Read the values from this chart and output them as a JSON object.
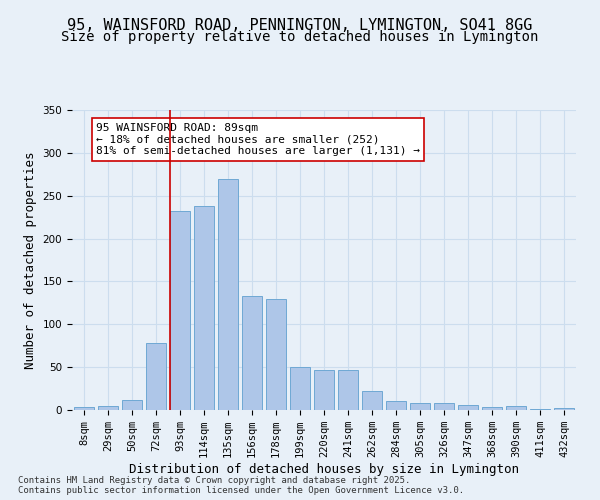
{
  "title_line1": "95, WAINSFORD ROAD, PENNINGTON, LYMINGTON, SO41 8GG",
  "title_line2": "Size of property relative to detached houses in Lymington",
  "xlabel": "Distribution of detached houses by size in Lymington",
  "ylabel": "Number of detached properties",
  "categories": [
    "8sqm",
    "29sqm",
    "50sqm",
    "72sqm",
    "93sqm",
    "114sqm",
    "135sqm",
    "156sqm",
    "178sqm",
    "199sqm",
    "220sqm",
    "241sqm",
    "262sqm",
    "284sqm",
    "305sqm",
    "326sqm",
    "347sqm",
    "368sqm",
    "390sqm",
    "411sqm",
    "432sqm"
  ],
  "values": [
    3,
    5,
    12,
    78,
    232,
    238,
    270,
    133,
    130,
    50,
    47,
    47,
    22,
    10,
    8,
    8,
    6,
    4,
    5,
    1,
    2
  ],
  "bar_color": "#aec6e8",
  "bar_edge_color": "#6fa8d4",
  "grid_color": "#ccddee",
  "background_color": "#e8f0f8",
  "vline_x": 4,
  "vline_color": "#cc0000",
  "annotation_text": "95 WAINSFORD ROAD: 89sqm\n← 18% of detached houses are smaller (252)\n81% of semi-detached houses are larger (1,131) →",
  "annotation_box_color": "#ffffff",
  "annotation_edge_color": "#cc0000",
  "ylim": [
    0,
    350
  ],
  "yticks": [
    0,
    50,
    100,
    150,
    200,
    250,
    300,
    350
  ],
  "footnote": "Contains HM Land Registry data © Crown copyright and database right 2025.\nContains public sector information licensed under the Open Government Licence v3.0.",
  "title_fontsize": 11,
  "subtitle_fontsize": 10,
  "axis_label_fontsize": 9,
  "tick_fontsize": 7.5,
  "annotation_fontsize": 8
}
